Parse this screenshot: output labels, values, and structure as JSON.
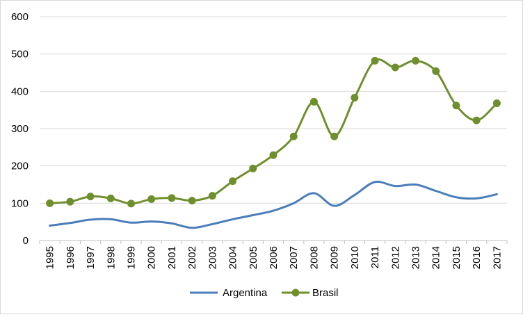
{
  "chart_data": {
    "type": "line",
    "title": "",
    "xlabel": "",
    "ylabel": "",
    "ylim": [
      0,
      600
    ],
    "yticks": [
      0,
      100,
      200,
      300,
      400,
      500,
      600
    ],
    "grid": true,
    "legend_position": "bottom",
    "x": [
      "1995",
      "1996",
      "1997",
      "1998",
      "1999",
      "2000",
      "2001",
      "2002",
      "2003",
      "2004",
      "2005",
      "2006",
      "2007",
      "2008",
      "2009",
      "2010",
      "2011",
      "2012",
      "2013",
      "2014",
      "2015",
      "2016",
      "2017"
    ],
    "series": [
      {
        "name": "Argentina",
        "color": "#4a7ebb",
        "marker": "none",
        "values": [
          40,
          47,
          56,
          57,
          48,
          51,
          46,
          34,
          44,
          57,
          68,
          80,
          100,
          127,
          93,
          122,
          157,
          146,
          150,
          133,
          116,
          113,
          124
        ]
      },
      {
        "name": "Brasil",
        "color": "#6f8f2e",
        "marker": "circle",
        "values": [
          100,
          104,
          118,
          113,
          99,
          111,
          114,
          107,
          120,
          159,
          193,
          229,
          279,
          372,
          279,
          383,
          482,
          464,
          482,
          454,
          362,
          322,
          368
        ]
      }
    ]
  }
}
